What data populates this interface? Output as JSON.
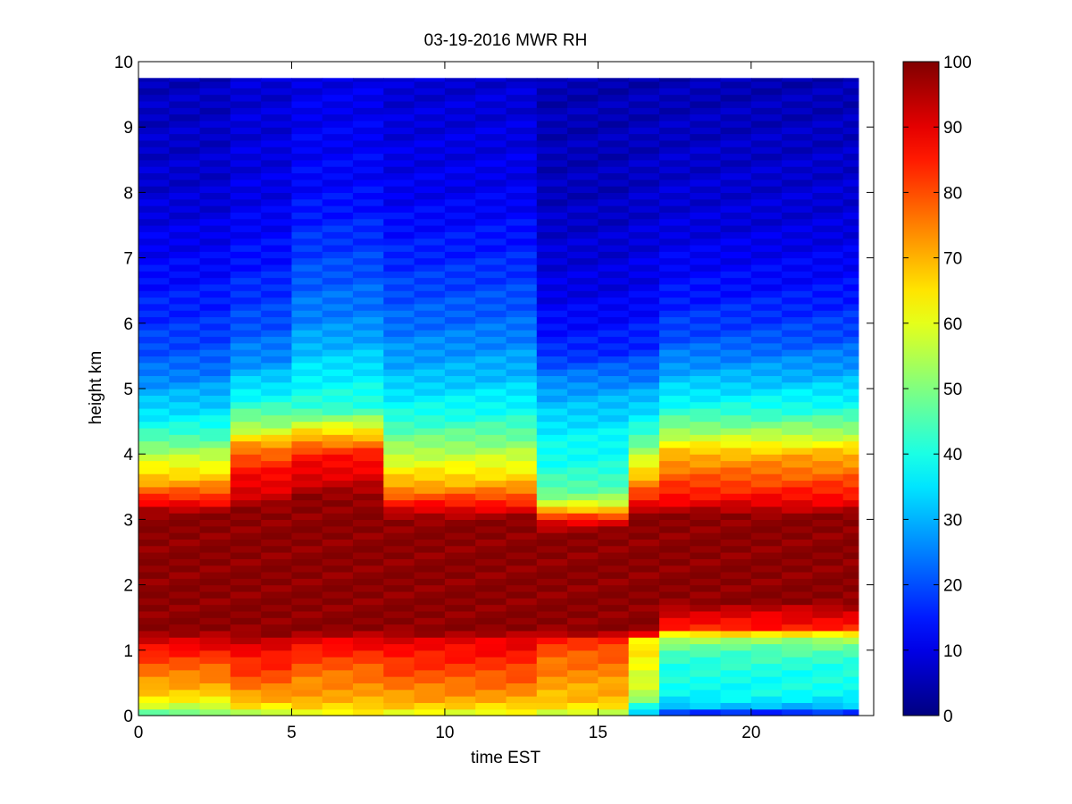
{
  "chart_data": {
    "type": "heatmap",
    "title": "03-19-2016 MWR RH",
    "xlabel": "time EST",
    "ylabel": "height km",
    "xlim": [
      0,
      24
    ],
    "ylim": [
      0,
      10
    ],
    "xticks": [
      0,
      5,
      10,
      15,
      20
    ],
    "yticks": [
      0,
      1,
      2,
      3,
      4,
      5,
      6,
      7,
      8,
      9,
      10
    ],
    "colorbar": {
      "range": [
        0,
        100
      ],
      "ticks": [
        0,
        10,
        20,
        30,
        40,
        50,
        60,
        70,
        80,
        90,
        100
      ],
      "colormap": "jet"
    },
    "time_step_hours": 1,
    "time_start": 0,
    "time_end": 23.5,
    "height_top_km": 9.75,
    "profiles": [
      {
        "hours": [
          0,
          1
        ],
        "profile": "night_moist"
      },
      {
        "hours": [
          1,
          2
        ],
        "profile": "night_moist"
      },
      {
        "hours": [
          2,
          3
        ],
        "profile": "night_moist"
      },
      {
        "hours": [
          3,
          4
        ],
        "profile": "night_moist_warm"
      },
      {
        "hours": [
          4,
          5
        ],
        "profile": "night_moist_warm"
      },
      {
        "hours": [
          5,
          6
        ],
        "profile": "morning_high"
      },
      {
        "hours": [
          6,
          7
        ],
        "profile": "morning_high"
      },
      {
        "hours": [
          7,
          8
        ],
        "profile": "morning_high"
      },
      {
        "hours": [
          8,
          9
        ],
        "profile": "midday"
      },
      {
        "hours": [
          9,
          10
        ],
        "profile": "midday"
      },
      {
        "hours": [
          10,
          11
        ],
        "profile": "midday"
      },
      {
        "hours": [
          11,
          12
        ],
        "profile": "midday"
      },
      {
        "hours": [
          12,
          13
        ],
        "profile": "midday"
      },
      {
        "hours": [
          13,
          14
        ],
        "profile": "dry_aloft"
      },
      {
        "hours": [
          14,
          15
        ],
        "profile": "dry_aloft"
      },
      {
        "hours": [
          15,
          16
        ],
        "profile": "dry_aloft"
      },
      {
        "hours": [
          16,
          17
        ],
        "profile": "transition"
      },
      {
        "hours": [
          17,
          18
        ],
        "profile": "evening"
      },
      {
        "hours": [
          18,
          19
        ],
        "profile": "evening"
      },
      {
        "hours": [
          19,
          20
        ],
        "profile": "evening"
      },
      {
        "hours": [
          20,
          21
        ],
        "profile": "evening"
      },
      {
        "hours": [
          21,
          22
        ],
        "profile": "evening"
      },
      {
        "hours": [
          22,
          23
        ],
        "profile": "evening"
      },
      {
        "hours": [
          23,
          23.5
        ],
        "profile": "evening"
      }
    ]
  }
}
